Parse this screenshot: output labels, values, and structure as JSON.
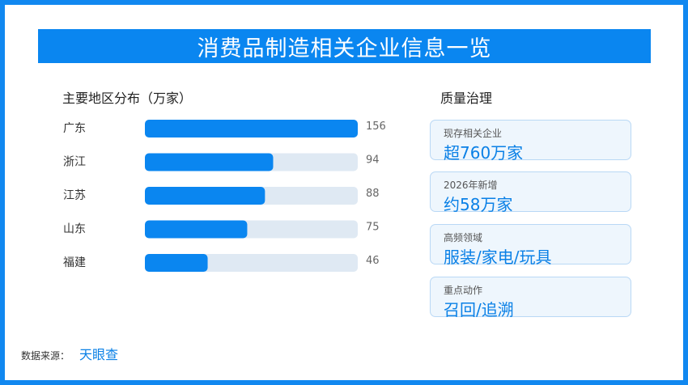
{
  "title": "消费品制造相关企业信息一览",
  "left_section": {
    "heading": "主要地区分布（万家）"
  },
  "right_section": {
    "heading": "质量治理"
  },
  "cards": [
    {
      "label": "现存相关企业",
      "value": "超760万家"
    },
    {
      "label": "2026年新增",
      "value": "约58万家"
    },
    {
      "label": "高频领域",
      "value": "服装/家电/玩具"
    },
    {
      "label": "重点动作",
      "value": "召回/追溯"
    }
  ],
  "source": {
    "label": "数据来源：",
    "value": "天眼查"
  },
  "colors": {
    "accent": "#0a86f0",
    "track": "#dfe9f3",
    "card_bg": "#eef6fd"
  },
  "chart_data": {
    "type": "bar",
    "orientation": "horizontal",
    "title": "主要地区分布（万家）",
    "categories": [
      "广东",
      "浙江",
      "江苏",
      "山东",
      "福建"
    ],
    "values": [
      156,
      94,
      88,
      75,
      46
    ],
    "xlim": [
      0,
      156
    ],
    "grid": false,
    "legend": "none"
  }
}
